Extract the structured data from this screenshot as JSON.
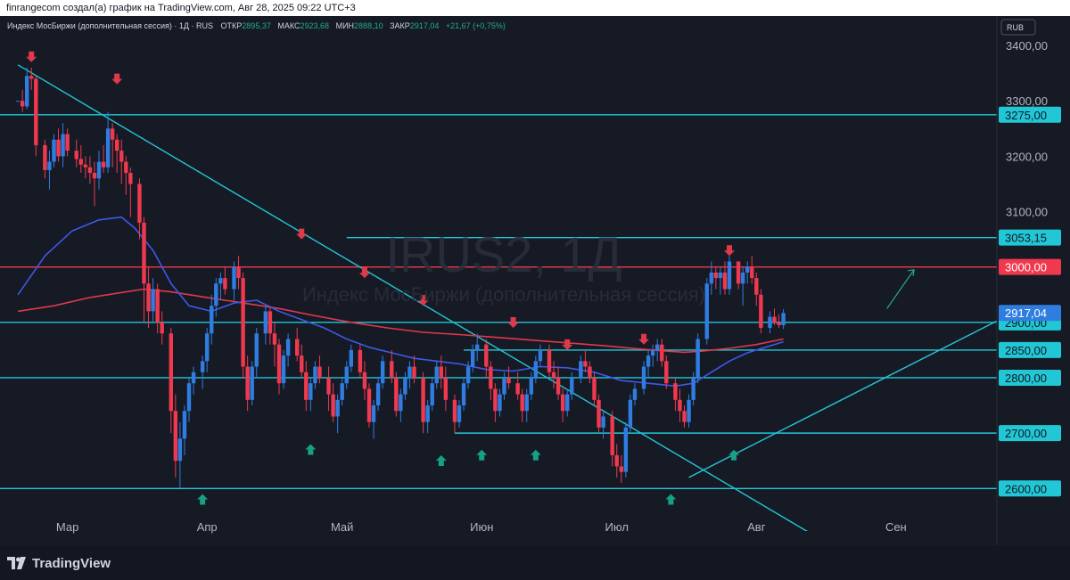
{
  "topbar": {
    "text": "finrangecom создал(а) график на TradingView.com, Авг 28, 2025 09:22 UTC+3"
  },
  "legend": {
    "name": "Индекс МосБиржи (дополнительная сессия) · 1Д · RUS",
    "open_label": "ОТКР",
    "open": "2895,37",
    "high_label": "МАКС",
    "high": "2923,68",
    "low_label": "МИН",
    "low": "2888,10",
    "close_label": "ЗАКР",
    "close": "2917,04",
    "change": "+21,67 (+0,75%)"
  },
  "currency": "RUB",
  "watermark": {
    "symbol": "IRUS2, 1Д",
    "description": "Индекс МосБиржи (дополнительная сессия)"
  },
  "footer": {
    "brand": "TradingView"
  },
  "colors": {
    "up": "#2f7de1",
    "down": "#f0394f",
    "level": "#22c7d6",
    "red_level": "#f0394f",
    "ma_fast": "#3d59e8",
    "ma_slow": "#e0394b",
    "arrow_up": "#16a085",
    "arrow_down": "#e0394b"
  },
  "chart_data": {
    "type": "candlestick",
    "ylim": [
      2520,
      3450
    ],
    "x_months": [
      {
        "label": "Мар",
        "day": 13
      },
      {
        "label": "Апр",
        "day": 44
      },
      {
        "label": "Май",
        "day": 74
      },
      {
        "label": "Июн",
        "day": 105
      },
      {
        "label": "Июл",
        "day": 135
      },
      {
        "label": "Авг",
        "day": 166
      },
      {
        "label": "Сен",
        "day": 197
      }
    ],
    "y_ticks": [
      "3400,00",
      "3300,00",
      "3200,00",
      "3100,00"
    ],
    "y_tick_values": [
      3400,
      3300,
      3200,
      3100
    ],
    "levels": [
      {
        "value": 3275,
        "label": "3275,00",
        "color": "level"
      },
      {
        "value": 3053.15,
        "label": "3053,15",
        "color": "level",
        "from_day": 75
      },
      {
        "value": 3000,
        "label": "3000,00",
        "color": "red_level"
      },
      {
        "value": 2900,
        "label": "2900,00",
        "color": "level"
      },
      {
        "value": 2850,
        "label": "2850,00",
        "color": "level",
        "from_day": 101
      },
      {
        "value": 2800,
        "label": "2800,00",
        "color": "level"
      },
      {
        "value": 2700,
        "label": "2700,00",
        "color": "level",
        "from_day": 99
      },
      {
        "value": 2600,
        "label": "2600,00",
        "color": "level"
      }
    ],
    "last_price": {
      "value": 2917.04,
      "label": "2917,04"
    },
    "trendlines": [
      {
        "from": [
          2,
          3365
        ],
        "to": [
          183,
          2495
        ]
      },
      {
        "from": [
          151,
          2620
        ],
        "to": [
          220,
          2905
        ]
      }
    ],
    "projection_arrow": {
      "from": [
        195,
        2925
      ],
      "to": [
        201,
        2995
      ]
    },
    "candles": [
      [
        2,
        3300,
        3300,
        3300,
        3300
      ],
      [
        3,
        3300,
        3320,
        3280,
        3290
      ],
      [
        4,
        3290,
        3360,
        3285,
        3345
      ],
      [
        5,
        3345,
        3360,
        3320,
        3340
      ],
      [
        6,
        3340,
        3345,
        3200,
        3220
      ],
      [
        8,
        3220,
        3230,
        3160,
        3175
      ],
      [
        9,
        3175,
        3210,
        3140,
        3190
      ],
      [
        10,
        3190,
        3240,
        3180,
        3230
      ],
      [
        11,
        3230,
        3250,
        3190,
        3200
      ],
      [
        12,
        3200,
        3260,
        3180,
        3240
      ],
      [
        13,
        3240,
        3250,
        3200,
        3210
      ],
      [
        15,
        3210,
        3230,
        3180,
        3195
      ],
      [
        16,
        3195,
        3220,
        3170,
        3185
      ],
      [
        17,
        3185,
        3200,
        3160,
        3180
      ],
      [
        18,
        3180,
        3200,
        3150,
        3170
      ],
      [
        19,
        3170,
        3190,
        3110,
        3160
      ],
      [
        20,
        3160,
        3210,
        3140,
        3190
      ],
      [
        21,
        3190,
        3220,
        3170,
        3180
      ],
      [
        22,
        3180,
        3280,
        3170,
        3250
      ],
      [
        23,
        3250,
        3260,
        3180,
        3230
      ],
      [
        24,
        3230,
        3240,
        3170,
        3210
      ],
      [
        25,
        3210,
        3230,
        3150,
        3190
      ],
      [
        26,
        3190,
        3200,
        3130,
        3170
      ],
      [
        27,
        3170,
        3180,
        3090,
        3150
      ],
      [
        29,
        3150,
        3160,
        3050,
        3080
      ],
      [
        30,
        3080,
        3090,
        2900,
        2970
      ],
      [
        31,
        2970,
        3000,
        2890,
        2920
      ],
      [
        32,
        2920,
        2980,
        2900,
        2960
      ],
      [
        33,
        2960,
        2970,
        2880,
        2900
      ],
      [
        34,
        2900,
        2920,
        2860,
        2880
      ],
      [
        36,
        2880,
        2890,
        2700,
        2740
      ],
      [
        37,
        2740,
        2770,
        2620,
        2650
      ],
      [
        38,
        2650,
        2720,
        2600,
        2690
      ],
      [
        39,
        2690,
        2750,
        2660,
        2740
      ],
      [
        40,
        2740,
        2800,
        2720,
        2790
      ],
      [
        41,
        2790,
        2820,
        2770,
        2810
      ],
      [
        43,
        2810,
        2840,
        2780,
        2830
      ],
      [
        44,
        2830,
        2890,
        2810,
        2880
      ],
      [
        45,
        2880,
        2950,
        2860,
        2930
      ],
      [
        46,
        2930,
        2980,
        2910,
        2970
      ],
      [
        47,
        2970,
        2990,
        2940,
        2980
      ],
      [
        48,
        2980,
        3000,
        2950,
        2960
      ],
      [
        50,
        2960,
        3010,
        2940,
        3000
      ],
      [
        51,
        3000,
        3020,
        2960,
        2980
      ],
      [
        52,
        2980,
        2990,
        2800,
        2820
      ],
      [
        53,
        2820,
        2840,
        2740,
        2760
      ],
      [
        54,
        2760,
        2830,
        2750,
        2820
      ],
      [
        55,
        2820,
        2890,
        2800,
        2880
      ],
      [
        57,
        2880,
        2930,
        2860,
        2920
      ],
      [
        58,
        2920,
        2930,
        2860,
        2880
      ],
      [
        59,
        2880,
        2900,
        2820,
        2860
      ],
      [
        60,
        2860,
        2870,
        2770,
        2790
      ],
      [
        61,
        2790,
        2850,
        2780,
        2840
      ],
      [
        62,
        2840,
        2880,
        2820,
        2870
      ],
      [
        64,
        2870,
        2890,
        2830,
        2840
      ],
      [
        65,
        2840,
        2860,
        2800,
        2810
      ],
      [
        66,
        2810,
        2830,
        2740,
        2760
      ],
      [
        67,
        2760,
        2800,
        2740,
        2790
      ],
      [
        68,
        2790,
        2830,
        2780,
        2820
      ],
      [
        69,
        2820,
        2840,
        2790,
        2800
      ],
      [
        71,
        2800,
        2820,
        2740,
        2770
      ],
      [
        72,
        2770,
        2790,
        2720,
        2730
      ],
      [
        73,
        2730,
        2770,
        2700,
        2760
      ],
      [
        74,
        2760,
        2800,
        2750,
        2790
      ],
      [
        75,
        2790,
        2830,
        2780,
        2820
      ],
      [
        76,
        2820,
        2860,
        2810,
        2850
      ],
      [
        78,
        2850,
        2860,
        2800,
        2810
      ],
      [
        79,
        2810,
        2830,
        2760,
        2780
      ],
      [
        80,
        2780,
        2790,
        2710,
        2720
      ],
      [
        81,
        2720,
        2760,
        2690,
        2750
      ],
      [
        82,
        2750,
        2800,
        2740,
        2790
      ],
      [
        83,
        2790,
        2840,
        2780,
        2830
      ],
      [
        85,
        2830,
        2850,
        2790,
        2800
      ],
      [
        86,
        2800,
        2810,
        2730,
        2740
      ],
      [
        87,
        2740,
        2780,
        2720,
        2770
      ],
      [
        88,
        2770,
        2810,
        2760,
        2800
      ],
      [
        89,
        2800,
        2830,
        2780,
        2820
      ],
      [
        90,
        2820,
        2840,
        2790,
        2800
      ],
      [
        92,
        2800,
        2810,
        2700,
        2720
      ],
      [
        93,
        2720,
        2760,
        2700,
        2750
      ],
      [
        94,
        2750,
        2800,
        2740,
        2790
      ],
      [
        95,
        2790,
        2830,
        2780,
        2820
      ],
      [
        96,
        2820,
        2840,
        2780,
        2800
      ],
      [
        97,
        2800,
        2820,
        2740,
        2760
      ],
      [
        99,
        2760,
        2770,
        2700,
        2720
      ],
      [
        100,
        2720,
        2760,
        2710,
        2750
      ],
      [
        101,
        2750,
        2800,
        2740,
        2790
      ],
      [
        102,
        2790,
        2830,
        2780,
        2820
      ],
      [
        103,
        2820,
        2860,
        2810,
        2850
      ],
      [
        104,
        2850,
        2880,
        2830,
        2860
      ],
      [
        106,
        2860,
        2870,
        2800,
        2820
      ],
      [
        107,
        2820,
        2830,
        2760,
        2780
      ],
      [
        108,
        2780,
        2790,
        2720,
        2740
      ],
      [
        109,
        2740,
        2780,
        2730,
        2770
      ],
      [
        110,
        2770,
        2810,
        2760,
        2800
      ],
      [
        111,
        2800,
        2820,
        2780,
        2790
      ],
      [
        113,
        2790,
        2810,
        2760,
        2770
      ],
      [
        114,
        2770,
        2780,
        2720,
        2740
      ],
      [
        115,
        2740,
        2780,
        2720,
        2770
      ],
      [
        116,
        2770,
        2810,
        2760,
        2800
      ],
      [
        117,
        2800,
        2840,
        2790,
        2830
      ],
      [
        118,
        2830,
        2860,
        2820,
        2850
      ],
      [
        120,
        2850,
        2860,
        2800,
        2810
      ],
      [
        121,
        2810,
        2830,
        2780,
        2800
      ],
      [
        122,
        2800,
        2820,
        2760,
        2770
      ],
      [
        123,
        2770,
        2780,
        2720,
        2740
      ],
      [
        124,
        2740,
        2780,
        2730,
        2770
      ],
      [
        125,
        2770,
        2810,
        2760,
        2800
      ],
      [
        127,
        2800,
        2840,
        2790,
        2830
      ],
      [
        128,
        2830,
        2850,
        2810,
        2820
      ],
      [
        129,
        2820,
        2830,
        2790,
        2800
      ],
      [
        130,
        2800,
        2810,
        2750,
        2760
      ],
      [
        131,
        2760,
        2770,
        2700,
        2710
      ],
      [
        132,
        2710,
        2740,
        2690,
        2730
      ],
      [
        134,
        2730,
        2740,
        2640,
        2660
      ],
      [
        135,
        2660,
        2680,
        2620,
        2640
      ],
      [
        136,
        2640,
        2660,
        2610,
        2630
      ],
      [
        137,
        2630,
        2720,
        2620,
        2710
      ],
      [
        138,
        2710,
        2770,
        2700,
        2760
      ],
      [
        139,
        2760,
        2790,
        2750,
        2780
      ],
      [
        141,
        2780,
        2830,
        2770,
        2820
      ],
      [
        142,
        2820,
        2850,
        2800,
        2840
      ],
      [
        143,
        2840,
        2860,
        2820,
        2850
      ],
      [
        144,
        2850,
        2870,
        2830,
        2860
      ],
      [
        145,
        2860,
        2870,
        2820,
        2830
      ],
      [
        146,
        2830,
        2840,
        2780,
        2790
      ],
      [
        148,
        2790,
        2800,
        2740,
        2760
      ],
      [
        149,
        2760,
        2780,
        2720,
        2740
      ],
      [
        150,
        2740,
        2750,
        2710,
        2720
      ],
      [
        151,
        2720,
        2770,
        2710,
        2760
      ],
      [
        152,
        2760,
        2810,
        2750,
        2800
      ],
      [
        153,
        2800,
        2880,
        2790,
        2870
      ],
      [
        155,
        2870,
        2980,
        2860,
        2970
      ],
      [
        156,
        2970,
        3010,
        2950,
        2990
      ],
      [
        157,
        2990,
        3000,
        2960,
        2980
      ],
      [
        158,
        2980,
        3000,
        2950,
        2990
      ],
      [
        159,
        2990,
        3010,
        2950,
        2960
      ],
      [
        160,
        2960,
        3020,
        2950,
        3010
      ],
      [
        162,
        3010,
        3010,
        2960,
        2970
      ],
      [
        163,
        2970,
        3000,
        2930,
        2990
      ],
      [
        164,
        2990,
        3010,
        2970,
        3000
      ],
      [
        165,
        3000,
        3020,
        2970,
        2980
      ],
      [
        166,
        2980,
        2990,
        2930,
        2950
      ],
      [
        167,
        2950,
        2960,
        2880,
        2890
      ],
      [
        169,
        2890,
        2920,
        2880,
        2910
      ],
      [
        170,
        2910,
        2925,
        2895,
        2900
      ],
      [
        171,
        2900,
        2915,
        2890,
        2895
      ],
      [
        172,
        2895,
        2924,
        2888,
        2917
      ]
    ],
    "ma_fast": [
      [
        2,
        2950
      ],
      [
        8,
        3020
      ],
      [
        14,
        3065
      ],
      [
        20,
        3085
      ],
      [
        25,
        3090
      ],
      [
        28,
        3070
      ],
      [
        32,
        3030
      ],
      [
        36,
        2970
      ],
      [
        40,
        2930
      ],
      [
        45,
        2920
      ],
      [
        50,
        2935
      ],
      [
        55,
        2940
      ],
      [
        60,
        2920
      ],
      [
        65,
        2905
      ],
      [
        70,
        2890
      ],
      [
        75,
        2870
      ],
      [
        80,
        2855
      ],
      [
        85,
        2845
      ],
      [
        90,
        2835
      ],
      [
        95,
        2830
      ],
      [
        100,
        2825
      ],
      [
        106,
        2815
      ],
      [
        112,
        2812
      ],
      [
        118,
        2820
      ],
      [
        124,
        2818
      ],
      [
        130,
        2810
      ],
      [
        136,
        2795
      ],
      [
        142,
        2790
      ],
      [
        148,
        2785
      ],
      [
        152,
        2790
      ],
      [
        156,
        2810
      ],
      [
        160,
        2830
      ],
      [
        164,
        2845
      ],
      [
        168,
        2855
      ],
      [
        172,
        2865
      ]
    ],
    "ma_slow": [
      [
        2,
        2920
      ],
      [
        10,
        2930
      ],
      [
        18,
        2945
      ],
      [
        26,
        2955
      ],
      [
        30,
        2960
      ],
      [
        36,
        2955
      ],
      [
        44,
        2945
      ],
      [
        52,
        2935
      ],
      [
        60,
        2925
      ],
      [
        68,
        2912
      ],
      [
        76,
        2900
      ],
      [
        84,
        2890
      ],
      [
        92,
        2882
      ],
      [
        100,
        2878
      ],
      [
        108,
        2873
      ],
      [
        116,
        2868
      ],
      [
        124,
        2863
      ],
      [
        132,
        2858
      ],
      [
        140,
        2852
      ],
      [
        146,
        2848
      ],
      [
        150,
        2846
      ],
      [
        154,
        2848
      ],
      [
        160,
        2853
      ],
      [
        166,
        2860
      ],
      [
        172,
        2870
      ]
    ],
    "arrows_down": [
      [
        5,
        3370
      ],
      [
        24,
        3330
      ],
      [
        65,
        3050
      ],
      [
        79,
        2980
      ],
      [
        92,
        2930
      ],
      [
        112,
        2890
      ],
      [
        124,
        2850
      ],
      [
        141,
        2860
      ],
      [
        160,
        3020
      ]
    ],
    "arrows_up": [
      [
        43,
        2590
      ],
      [
        67,
        2680
      ],
      [
        96,
        2660
      ],
      [
        105,
        2670
      ],
      [
        117,
        2670
      ],
      [
        147,
        2590
      ],
      [
        161,
        2670
      ]
    ]
  }
}
